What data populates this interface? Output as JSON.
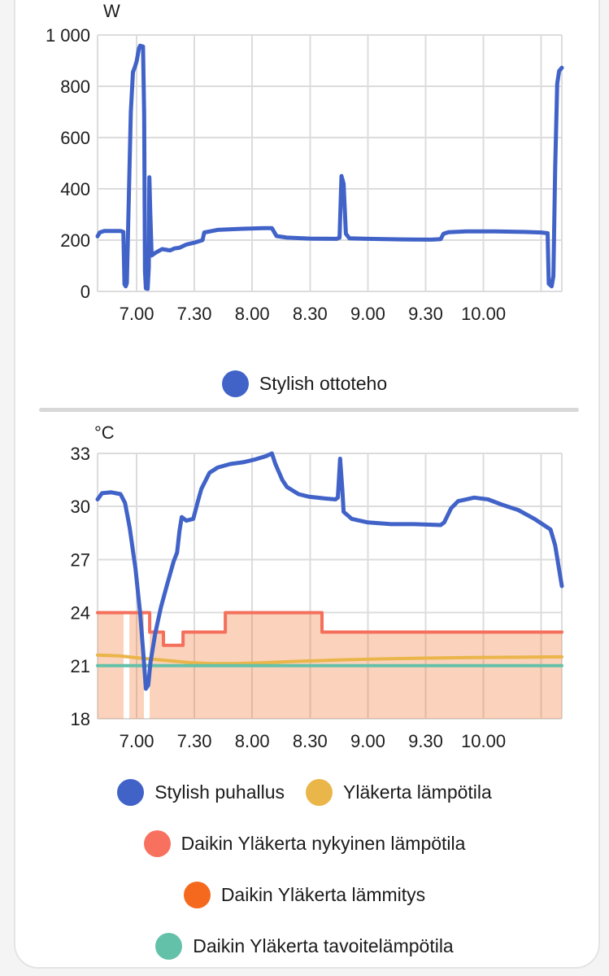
{
  "ui": {
    "background": "#f4f4f4",
    "card_bg": "#ffffff",
    "card_border": "#e4e4e4",
    "divider_color": "#d8d8d8",
    "grid_color": "#dcdcdc",
    "text_color": "#1e1e1e"
  },
  "chart_data": [
    {
      "type": "line",
      "unit": "W",
      "xlim": [
        6.662,
        10.678
      ],
      "ylim": [
        0,
        1000
      ],
      "grid": true,
      "legend_position": "bottom-center",
      "x_ticks": [
        {
          "t": 7.0,
          "label": "7.00"
        },
        {
          "t": 7.5,
          "label": "7.30"
        },
        {
          "t": 8.0,
          "label": "8.00"
        },
        {
          "t": 8.5,
          "label": "8.30"
        },
        {
          "t": 9.0,
          "label": "9.00"
        },
        {
          "t": 9.5,
          "label": "9.30"
        },
        {
          "t": 10.0,
          "label": "10.00"
        },
        {
          "t": 10.5,
          "label": ""
        }
      ],
      "y_ticks": [
        {
          "v": 0,
          "label": "0"
        },
        {
          "v": 200,
          "label": "200"
        },
        {
          "v": 400,
          "label": "400"
        },
        {
          "v": 600,
          "label": "600"
        },
        {
          "v": 800,
          "label": "800"
        },
        {
          "v": 1000,
          "label": "1 000"
        }
      ],
      "legend_rows": [
        [
          {
            "label": "Stylish ottoteho",
            "color": "#4163c8"
          }
        ]
      ],
      "series": [
        {
          "name": "Stylish ottoteho",
          "type": "line",
          "color": "#4163c8",
          "width": 5,
          "points": [
            [
              6.662,
              215
            ],
            [
              6.68,
              230
            ],
            [
              6.72,
              236
            ],
            [
              6.86,
              236
            ],
            [
              6.885,
              232
            ],
            [
              6.895,
              28
            ],
            [
              6.905,
              20
            ],
            [
              6.915,
              32
            ],
            [
              6.93,
              320
            ],
            [
              6.95,
              700
            ],
            [
              6.968,
              855
            ],
            [
              6.985,
              875
            ],
            [
              7.0,
              898
            ],
            [
              7.02,
              948
            ],
            [
              7.03,
              958
            ],
            [
              7.055,
              955
            ],
            [
              7.065,
              690
            ],
            [
              7.072,
              80
            ],
            [
              7.08,
              12
            ],
            [
              7.095,
              10
            ],
            [
              7.105,
              95
            ],
            [
              7.11,
              445
            ],
            [
              7.118,
              310
            ],
            [
              7.13,
              140
            ],
            [
              7.16,
              150
            ],
            [
              7.22,
              165
            ],
            [
              7.29,
              160
            ],
            [
              7.33,
              168
            ],
            [
              7.37,
              170
            ],
            [
              7.43,
              183
            ],
            [
              7.5,
              190
            ],
            [
              7.57,
              200
            ],
            [
              7.585,
              230
            ],
            [
              7.7,
              240
            ],
            [
              7.9,
              244
            ],
            [
              8.1,
              247
            ],
            [
              8.17,
              247
            ],
            [
              8.21,
              216
            ],
            [
              8.3,
              210
            ],
            [
              8.5,
              206
            ],
            [
              8.73,
              205
            ],
            [
              8.755,
              210
            ],
            [
              8.772,
              450
            ],
            [
              8.79,
              420
            ],
            [
              8.81,
              225
            ],
            [
              8.84,
              207
            ],
            [
              9.0,
              205
            ],
            [
              9.3,
              203
            ],
            [
              9.55,
              202
            ],
            [
              9.63,
              204
            ],
            [
              9.655,
              225
            ],
            [
              9.7,
              231
            ],
            [
              9.85,
              234
            ],
            [
              10.1,
              234
            ],
            [
              10.35,
              232
            ],
            [
              10.5,
              230
            ],
            [
              10.555,
              227
            ],
            [
              10.565,
              30
            ],
            [
              10.59,
              20
            ],
            [
              10.605,
              60
            ],
            [
              10.62,
              480
            ],
            [
              10.638,
              810
            ],
            [
              10.655,
              860
            ],
            [
              10.678,
              872
            ]
          ]
        }
      ]
    },
    {
      "type": "line",
      "unit": "°C",
      "xlim": [
        6.662,
        10.678
      ],
      "ylim": [
        18,
        33
      ],
      "grid": true,
      "legend_position": "bottom-center",
      "x_ticks": [
        {
          "t": 7.0,
          "label": "7.00"
        },
        {
          "t": 7.5,
          "label": "7.30"
        },
        {
          "t": 8.0,
          "label": "8.00"
        },
        {
          "t": 8.5,
          "label": "8.30"
        },
        {
          "t": 9.0,
          "label": "9.00"
        },
        {
          "t": 9.5,
          "label": "9.30"
        },
        {
          "t": 10.0,
          "label": "10.00"
        },
        {
          "t": 10.5,
          "label": ""
        }
      ],
      "y_ticks": [
        {
          "v": 18,
          "label": "18"
        },
        {
          "v": 21,
          "label": "21"
        },
        {
          "v": 24,
          "label": "24"
        },
        {
          "v": 27,
          "label": "27"
        },
        {
          "v": 30,
          "label": "30"
        },
        {
          "v": 33,
          "label": "33"
        }
      ],
      "legend_rows": [
        [
          {
            "label": "Stylish puhallus",
            "color": "#4163c8"
          },
          {
            "label": "Yläkerta lämpötila",
            "color": "#eab549"
          }
        ],
        [
          {
            "label": "Daikin Yläkerta nykyinen lämpötila",
            "color": "#f8715f"
          }
        ],
        [
          {
            "label": "Daikin Yläkerta lämmitys",
            "color": "#f4691e"
          }
        ],
        [
          {
            "label": "Daikin Yläkerta tavoitelämpötila",
            "color": "#64c1a9"
          }
        ]
      ],
      "series": [
        {
          "name": "Daikin Yläkerta lämmitys",
          "type": "step-area",
          "color": "rgba(243,106,31,0.30)",
          "base": 18,
          "gaps": [
            [
              6.887,
              6.937
            ],
            [
              7.063,
              7.113
            ]
          ],
          "step_points": [
            [
              6.662,
              24.0
            ],
            [
              7.113,
              22.9
            ],
            [
              7.232,
              22.15
            ],
            [
              7.401,
              22.9
            ],
            [
              7.767,
              24.0
            ],
            [
              8.603,
              22.9
            ]
          ]
        },
        {
          "name": "Daikin Yläkerta nykyinen lämpötila",
          "type": "step",
          "color": "#f4705c",
          "width": 4,
          "step_points": [
            [
              6.662,
              24.0
            ],
            [
              7.113,
              22.9
            ],
            [
              7.232,
              22.15
            ],
            [
              7.401,
              22.9
            ],
            [
              7.767,
              24.0
            ],
            [
              8.603,
              22.9
            ]
          ]
        },
        {
          "name": "Yläkerta lämpötila",
          "type": "line",
          "color": "#eab549",
          "width": 4,
          "points": [
            [
              6.662,
              21.6
            ],
            [
              6.85,
              21.55
            ],
            [
              7.05,
              21.42
            ],
            [
              7.25,
              21.3
            ],
            [
              7.45,
              21.18
            ],
            [
              7.65,
              21.12
            ],
            [
              7.85,
              21.12
            ],
            [
              8.1,
              21.17
            ],
            [
              8.4,
              21.25
            ],
            [
              8.75,
              21.32
            ],
            [
              9.1,
              21.38
            ],
            [
              9.5,
              21.43
            ],
            [
              9.9,
              21.46
            ],
            [
              10.3,
              21.48
            ],
            [
              10.678,
              21.5
            ]
          ]
        },
        {
          "name": "Daikin Yläkerta tavoitelämpötila",
          "type": "line",
          "color": "#64c1a9",
          "width": 4,
          "points": [
            [
              6.662,
              21.0
            ],
            [
              10.678,
              21.0
            ]
          ]
        },
        {
          "name": "Stylish puhallus",
          "type": "line",
          "color": "#4163c8",
          "width": 5,
          "points": [
            [
              6.662,
              30.4
            ],
            [
              6.7,
              30.75
            ],
            [
              6.78,
              30.8
            ],
            [
              6.86,
              30.7
            ],
            [
              6.9,
              30.2
            ],
            [
              6.94,
              28.8
            ],
            [
              6.99,
              26.5
            ],
            [
              7.03,
              24.0
            ],
            [
              7.06,
              21.5
            ],
            [
              7.08,
              19.7
            ],
            [
              7.1,
              19.9
            ],
            [
              7.12,
              21.2
            ],
            [
              7.16,
              22.8
            ],
            [
              7.21,
              24.3
            ],
            [
              7.26,
              25.5
            ],
            [
              7.32,
              26.9
            ],
            [
              7.35,
              27.4
            ],
            [
              7.37,
              28.6
            ],
            [
              7.39,
              29.4
            ],
            [
              7.43,
              29.2
            ],
            [
              7.49,
              29.3
            ],
            [
              7.53,
              30.3
            ],
            [
              7.56,
              31.0
            ],
            [
              7.63,
              31.9
            ],
            [
              7.7,
              32.2
            ],
            [
              7.81,
              32.4
            ],
            [
              7.92,
              32.5
            ],
            [
              8.02,
              32.65
            ],
            [
              8.12,
              32.85
            ],
            [
              8.17,
              33.0
            ],
            [
              8.2,
              32.4
            ],
            [
              8.26,
              31.5
            ],
            [
              8.3,
              31.1
            ],
            [
              8.4,
              30.7
            ],
            [
              8.49,
              30.55
            ],
            [
              8.63,
              30.45
            ],
            [
              8.72,
              30.4
            ],
            [
              8.74,
              30.5
            ],
            [
              8.76,
              32.7
            ],
            [
              8.78,
              30.9
            ],
            [
              8.79,
              29.7
            ],
            [
              8.86,
              29.3
            ],
            [
              9.0,
              29.1
            ],
            [
              9.2,
              29.0
            ],
            [
              9.4,
              29.0
            ],
            [
              9.63,
              28.95
            ],
            [
              9.66,
              29.1
            ],
            [
              9.72,
              29.9
            ],
            [
              9.78,
              30.3
            ],
            [
              9.92,
              30.5
            ],
            [
              10.04,
              30.4
            ],
            [
              10.16,
              30.1
            ],
            [
              10.3,
              29.8
            ],
            [
              10.44,
              29.3
            ],
            [
              10.51,
              29.0
            ],
            [
              10.58,
              28.7
            ],
            [
              10.62,
              27.8
            ],
            [
              10.678,
              25.5
            ]
          ]
        }
      ]
    }
  ]
}
